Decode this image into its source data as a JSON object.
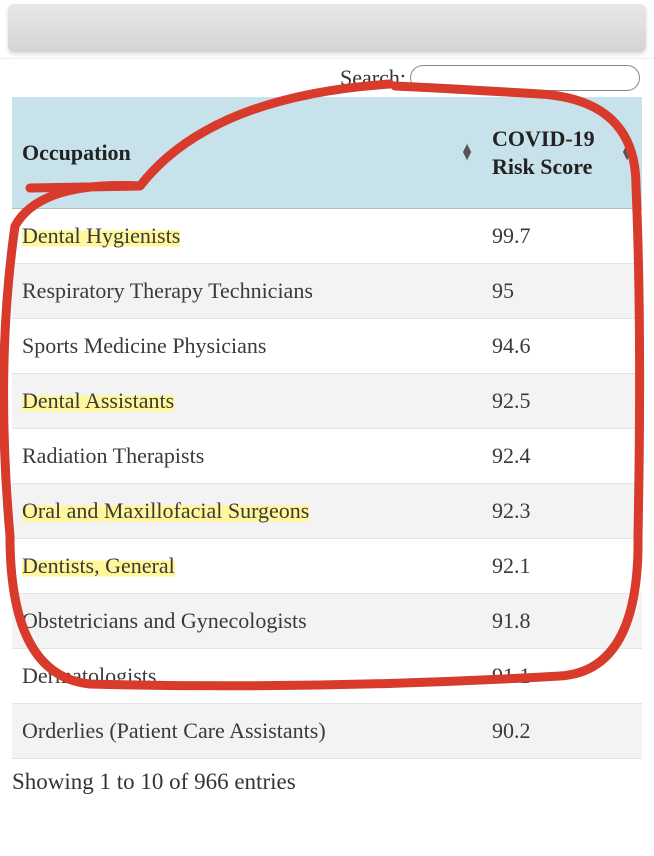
{
  "search": {
    "label": "Search:",
    "value": ""
  },
  "table": {
    "columns": [
      {
        "label": "Occupation",
        "sortable": true,
        "sort_dir": "both"
      },
      {
        "label": "COVID-19 Risk Score",
        "sortable": true,
        "sort_dir": "asc"
      }
    ],
    "header_bg": "#c7e2ea",
    "row_bg_odd": "#ffffff",
    "row_bg_even": "#f3f3f3",
    "highlight_color": "#fff79a",
    "annotation_color": "#d83a2b",
    "fontsize": 22,
    "rows": [
      {
        "occupation": "Dental Hygienists",
        "score": "99.7",
        "highlighted": true
      },
      {
        "occupation": "Respiratory Therapy Technicians",
        "score": "95",
        "highlighted": false
      },
      {
        "occupation": "Sports Medicine Physicians",
        "score": "94.6",
        "highlighted": false
      },
      {
        "occupation": "Dental Assistants",
        "score": "92.5",
        "highlighted": true
      },
      {
        "occupation": "Radiation Therapists",
        "score": "92.4",
        "highlighted": false
      },
      {
        "occupation": "Oral and Maxillofacial Surgeons",
        "score": "92.3",
        "highlighted": true
      },
      {
        "occupation": "Dentists, General",
        "score": "92.1",
        "highlighted": true
      },
      {
        "occupation": "Obstetricians and Gynecologists",
        "score": "91.8",
        "highlighted": false
      },
      {
        "occupation": "Dermatologists",
        "score": "91.1",
        "highlighted": false
      },
      {
        "occupation": "Orderlies (Patient Care Assistants)",
        "score": "90.2",
        "highlighted": false
      }
    ]
  },
  "info_text": "Showing 1 to 10 of 966 entries"
}
